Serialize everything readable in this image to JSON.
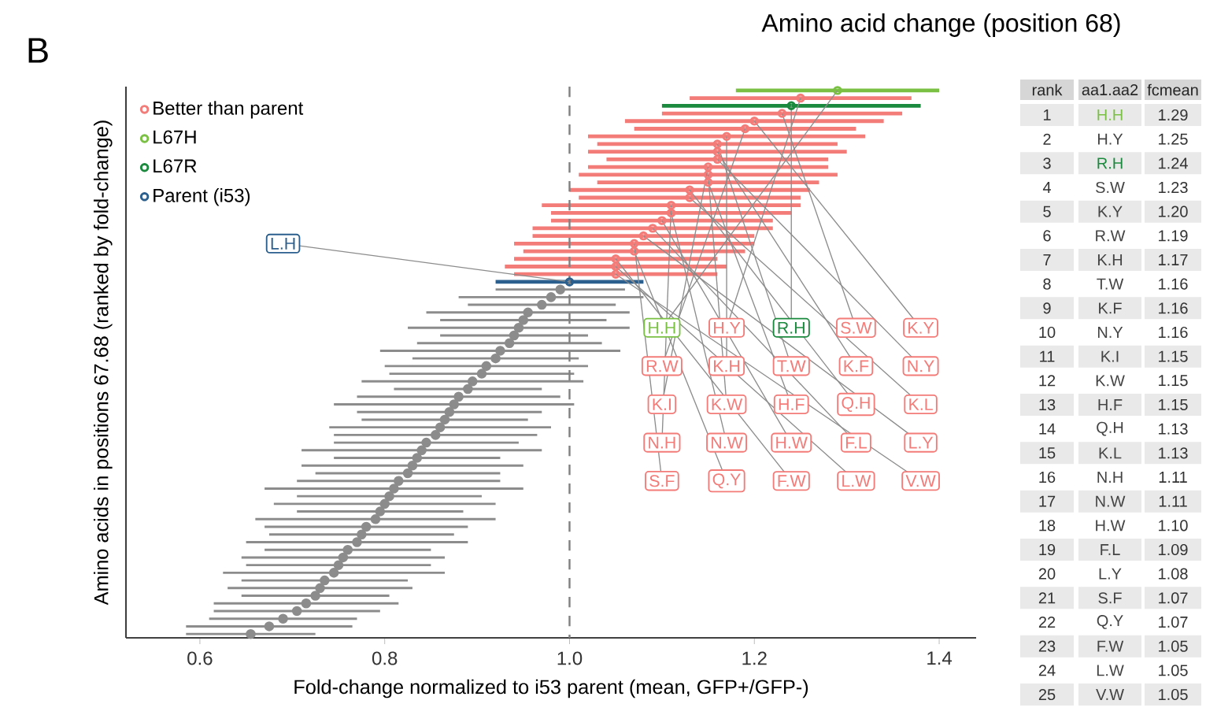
{
  "chart_data": [
    {
      "type": "scatter",
      "orientation": "horizontal",
      "title": "Amino acid change (position 68)",
      "annotations": [
        "B"
      ],
      "xlabel": "Fold-change normalized to i53 parent (mean, GFP+/GFP-)",
      "ylabel": "Amino acids in positions 67.68 (ranked by fold-change)",
      "categories": [
        null,
        null,
        null,
        null,
        null,
        null,
        null,
        null,
        null,
        null,
        null,
        null,
        null,
        null,
        null,
        null,
        null,
        null,
        null,
        null,
        null,
        null,
        null,
        null,
        null,
        null,
        null,
        null,
        null,
        null,
        null,
        null,
        null,
        null,
        null,
        null,
        null,
        null,
        null,
        null,
        null,
        null,
        null,
        null,
        null,
        null,
        null,
        null,
        null,
        null,
        null,
        null,
        null,
        null,
        null,
        null,
        null,
        null,
        null,
        null,
        null,
        null,
        null,
        null,
        null,
        null,
        null,
        null,
        null,
        null,
        null,
        null
      ],
      "xlim": [
        0.52,
        1.44
      ],
      "xticks": [
        0.6,
        0.8,
        {
          "value": 1.0,
          "label": "1.0"
        },
        1.2,
        1.4
      ],
      "tick_labels": "x",
      "marker": "circle",
      "legend": "top left",
      "ref_lines": [
        {
          "axis": "x",
          "value": 1.0,
          "color": "#808080",
          "line_style": "dashed"
        }
      ],
      "series": [
        {
          "name": "Better than parent",
          "color": "#f37b78",
          "values": [
            null,
            1.25,
            null,
            1.23,
            1.2,
            1.19,
            1.17,
            1.16,
            1.16,
            1.16,
            1.15,
            1.15,
            1.15,
            1.13,
            1.13,
            1.11,
            1.11,
            1.1,
            1.09,
            1.08,
            1.07,
            1.07,
            1.05,
            1.05,
            1.05,
            null,
            null,
            null,
            null,
            null,
            null,
            null,
            null,
            null,
            null,
            null,
            null,
            null,
            null,
            null,
            null,
            null,
            null,
            null,
            null,
            null,
            null,
            null,
            null,
            null,
            null,
            null,
            null,
            null,
            null,
            null,
            null,
            null,
            null,
            null,
            null,
            null,
            null,
            null,
            null,
            null,
            null,
            null,
            null,
            null,
            null,
            null
          ],
          "errors": [
            null,
            0.12,
            null,
            0.13,
            0.14,
            0.12,
            0.15,
            0.13,
            0.14,
            0.12,
            0.13,
            0.14,
            0.12,
            0.13,
            0.12,
            0.14,
            0.13,
            0.12,
            0.13,
            0.12,
            0.13,
            0.12,
            0.11,
            0.12,
            0.11,
            null,
            null,
            null,
            null,
            null,
            null,
            null,
            null,
            null,
            null,
            null,
            null,
            null,
            null,
            null,
            null,
            null,
            null,
            null,
            null,
            null,
            null,
            null,
            null,
            null,
            null,
            null,
            null,
            null,
            null,
            null,
            null,
            null,
            null,
            null,
            null,
            null,
            null,
            null,
            null,
            null,
            null,
            null,
            null,
            null,
            null,
            null
          ],
          "value_labels": [
            null,
            "H.Y",
            null,
            "S.W",
            "K.Y",
            "R.W",
            "K.H",
            "T.W",
            "K.F",
            "N.Y",
            "K.I",
            "K.W",
            "H.F",
            "Q.H",
            "K.L",
            "N.H",
            "N.W",
            "H.W",
            "F.L",
            "L.Y",
            "S.F",
            "Q.Y",
            "F.W",
            "L.W",
            "V.W",
            null,
            null,
            null,
            null,
            null,
            null,
            null,
            null,
            null,
            null,
            null,
            null,
            null,
            null,
            null,
            null,
            null,
            null,
            null,
            null,
            null,
            null,
            null,
            null,
            null,
            null,
            null,
            null,
            null,
            null,
            null,
            null,
            null,
            null,
            null,
            null,
            null,
            null,
            null,
            null,
            null,
            null,
            null,
            null,
            null,
            null,
            null
          ]
        },
        {
          "name": "L67H",
          "color": "#7ac143",
          "values": [
            1.29,
            null,
            null,
            null,
            null,
            null,
            null,
            null,
            null,
            null,
            null,
            null,
            null,
            null,
            null,
            null,
            null,
            null,
            null,
            null,
            null,
            null,
            null,
            null,
            null,
            null,
            null,
            null,
            null,
            null,
            null,
            null,
            null,
            null,
            null,
            null,
            null,
            null,
            null,
            null,
            null,
            null,
            null,
            null,
            null,
            null,
            null,
            null,
            null,
            null,
            null,
            null,
            null,
            null,
            null,
            null,
            null,
            null,
            null,
            null,
            null,
            null,
            null,
            null,
            null,
            null,
            null,
            null,
            null,
            null,
            null,
            null
          ],
          "errors": [
            0.11,
            null,
            null,
            null,
            null,
            null,
            null,
            null,
            null,
            null,
            null,
            null,
            null,
            null,
            null,
            null,
            null,
            null,
            null,
            null,
            null,
            null,
            null,
            null,
            null,
            null,
            null,
            null,
            null,
            null,
            null,
            null,
            null,
            null,
            null,
            null,
            null,
            null,
            null,
            null,
            null,
            null,
            null,
            null,
            null,
            null,
            null,
            null,
            null,
            null,
            null,
            null,
            null,
            null,
            null,
            null,
            null,
            null,
            null,
            null,
            null,
            null,
            null,
            null,
            null,
            null,
            null,
            null,
            null,
            null,
            null,
            null
          ],
          "value_labels": [
            "H.H",
            null,
            null,
            null,
            null,
            null,
            null,
            null,
            null,
            null,
            null,
            null,
            null,
            null,
            null,
            null,
            null,
            null,
            null,
            null,
            null,
            null,
            null,
            null,
            null,
            null,
            null,
            null,
            null,
            null,
            null,
            null,
            null,
            null,
            null,
            null,
            null,
            null,
            null,
            null,
            null,
            null,
            null,
            null,
            null,
            null,
            null,
            null,
            null,
            null,
            null,
            null,
            null,
            null,
            null,
            null,
            null,
            null,
            null,
            null,
            null,
            null,
            null,
            null,
            null,
            null,
            null,
            null,
            null,
            null,
            null,
            null
          ]
        },
        {
          "name": "L67R",
          "color": "#1b8a3e",
          "values": [
            null,
            null,
            1.24,
            null,
            null,
            null,
            null,
            null,
            null,
            null,
            null,
            null,
            null,
            null,
            null,
            null,
            null,
            null,
            null,
            null,
            null,
            null,
            null,
            null,
            null,
            null,
            null,
            null,
            null,
            null,
            null,
            null,
            null,
            null,
            null,
            null,
            null,
            null,
            null,
            null,
            null,
            null,
            null,
            null,
            null,
            null,
            null,
            null,
            null,
            null,
            null,
            null,
            null,
            null,
            null,
            null,
            null,
            null,
            null,
            null,
            null,
            null,
            null,
            null,
            null,
            null,
            null,
            null,
            null,
            null,
            null,
            null
          ],
          "errors": [
            null,
            null,
            0.14,
            null,
            null,
            null,
            null,
            null,
            null,
            null,
            null,
            null,
            null,
            null,
            null,
            null,
            null,
            null,
            null,
            null,
            null,
            null,
            null,
            null,
            null,
            null,
            null,
            null,
            null,
            null,
            null,
            null,
            null,
            null,
            null,
            null,
            null,
            null,
            null,
            null,
            null,
            null,
            null,
            null,
            null,
            null,
            null,
            null,
            null,
            null,
            null,
            null,
            null,
            null,
            null,
            null,
            null,
            null,
            null,
            null,
            null,
            null,
            null,
            null,
            null,
            null,
            null,
            null,
            null,
            null,
            null,
            null
          ],
          "value_labels": [
            null,
            null,
            "R.H",
            null,
            null,
            null,
            null,
            null,
            null,
            null,
            null,
            null,
            null,
            null,
            null,
            null,
            null,
            null,
            null,
            null,
            null,
            null,
            null,
            null,
            null,
            null,
            null,
            null,
            null,
            null,
            null,
            null,
            null,
            null,
            null,
            null,
            null,
            null,
            null,
            null,
            null,
            null,
            null,
            null,
            null,
            null,
            null,
            null,
            null,
            null,
            null,
            null,
            null,
            null,
            null,
            null,
            null,
            null,
            null,
            null,
            null,
            null,
            null,
            null,
            null,
            null,
            null,
            null,
            null,
            null,
            null,
            null
          ]
        },
        {
          "name": "Parent (i53)",
          "color": "#2b5f8e",
          "values": [
            null,
            null,
            null,
            null,
            null,
            null,
            null,
            null,
            null,
            null,
            null,
            null,
            null,
            null,
            null,
            null,
            null,
            null,
            null,
            null,
            null,
            null,
            null,
            null,
            null,
            1.0,
            null,
            null,
            null,
            null,
            null,
            null,
            null,
            null,
            null,
            null,
            null,
            null,
            null,
            null,
            null,
            null,
            null,
            null,
            null,
            null,
            null,
            null,
            null,
            null,
            null,
            null,
            null,
            null,
            null,
            null,
            null,
            null,
            null,
            null,
            null,
            null,
            null,
            null,
            null,
            null,
            null,
            null,
            null,
            null,
            null,
            null
          ],
          "errors": [
            null,
            null,
            null,
            null,
            null,
            null,
            null,
            null,
            null,
            null,
            null,
            null,
            null,
            null,
            null,
            null,
            null,
            null,
            null,
            null,
            null,
            null,
            null,
            null,
            null,
            0.08,
            null,
            null,
            null,
            null,
            null,
            null,
            null,
            null,
            null,
            null,
            null,
            null,
            null,
            null,
            null,
            null,
            null,
            null,
            null,
            null,
            null,
            null,
            null,
            null,
            null,
            null,
            null,
            null,
            null,
            null,
            null,
            null,
            null,
            null,
            null,
            null,
            null,
            null,
            null,
            null,
            null,
            null,
            null,
            null,
            null,
            null
          ],
          "value_labels": [
            null,
            null,
            null,
            null,
            null,
            null,
            null,
            null,
            null,
            null,
            null,
            null,
            null,
            null,
            null,
            null,
            null,
            null,
            null,
            null,
            null,
            null,
            null,
            null,
            null,
            "L.H",
            null,
            null,
            null,
            null,
            null,
            null,
            null,
            null,
            null,
            null,
            null,
            null,
            null,
            null,
            null,
            null,
            null,
            null,
            null,
            null,
            null,
            null,
            null,
            null,
            null,
            null,
            null,
            null,
            null,
            null,
            null,
            null,
            null,
            null,
            null,
            null,
            null,
            null,
            null,
            null,
            null,
            null,
            null,
            null,
            null,
            null
          ]
        },
        {
          "color": "#8c8c8c",
          "values": [
            null,
            null,
            null,
            null,
            null,
            null,
            null,
            null,
            null,
            null,
            null,
            null,
            null,
            null,
            null,
            null,
            null,
            null,
            null,
            null,
            null,
            null,
            null,
            null,
            null,
            null,
            0.99,
            0.98,
            0.97,
            0.955,
            0.95,
            0.945,
            0.94,
            0.935,
            0.925,
            0.92,
            0.91,
            0.905,
            0.895,
            0.89,
            0.88,
            0.875,
            0.87,
            0.865,
            0.86,
            0.855,
            0.845,
            0.84,
            0.835,
            0.83,
            0.825,
            0.815,
            0.81,
            0.805,
            0.8,
            0.795,
            0.79,
            0.78,
            0.775,
            0.77,
            0.76,
            0.755,
            0.75,
            0.745,
            0.735,
            0.73,
            0.725,
            0.715,
            0.705,
            0.69,
            0.675,
            0.655
          ],
          "errors": [
            null,
            null,
            null,
            null,
            null,
            null,
            null,
            null,
            null,
            null,
            null,
            null,
            null,
            null,
            null,
            null,
            null,
            null,
            null,
            null,
            null,
            null,
            null,
            null,
            null,
            null,
            0.07,
            0.1,
            0.08,
            0.11,
            0.09,
            0.12,
            0.08,
            0.1,
            0.13,
            0.09,
            0.11,
            0.1,
            0.12,
            0.08,
            0.11,
            0.13,
            0.1,
            0.09,
            0.12,
            0.11,
            0.1,
            0.13,
            0.09,
            0.12,
            0.1,
            0.11,
            0.14,
            0.1,
            0.12,
            0.09,
            0.13,
            0.11,
            0.1,
            0.12,
            0.09,
            0.11,
            0.1,
            0.12,
            0.09,
            0.1,
            0.08,
            0.1,
            0.09,
            0.08,
            0.09,
            0.07
          ]
        }
      ]
    },
    {
      "type": "heatmap",
      "ylabel": "rank",
      "categories": [
        "aa1.aa2",
        "fcmean"
      ],
      "y_categories": [
        "1",
        "2",
        "3",
        "4",
        "5",
        "6",
        "7",
        "8",
        "9",
        "10",
        "11",
        "12",
        "13",
        "14",
        "15",
        "16",
        "17",
        "18",
        "19",
        "20",
        "21",
        "22",
        "23",
        "24",
        "25"
      ],
      "cells": [
        [
          null,
          null
        ],
        [
          null,
          null
        ],
        [
          null,
          null
        ],
        [
          null,
          null
        ],
        [
          null,
          null
        ],
        [
          null,
          null
        ],
        [
          null,
          null
        ],
        [
          null,
          null
        ],
        [
          null,
          null
        ],
        [
          null,
          null
        ],
        [
          null,
          null
        ],
        [
          null,
          null
        ],
        [
          null,
          null
        ],
        [
          null,
          null
        ],
        [
          null,
          null
        ],
        [
          null,
          null
        ],
        [
          null,
          null
        ],
        [
          null,
          null
        ],
        [
          null,
          null
        ],
        [
          null,
          null
        ],
        [
          null,
          null
        ],
        [
          null,
          null
        ],
        [
          null,
          null
        ],
        [
          null,
          null
        ],
        [
          null,
          null
        ]
      ],
      "cell_labels": [
        [
          "H.H",
          "1.29"
        ],
        [
          "H.Y",
          "1.25"
        ],
        [
          "R.H",
          "1.24"
        ],
        [
          "S.W",
          "1.23"
        ],
        [
          "K.Y",
          "1.20"
        ],
        [
          "R.W",
          "1.19"
        ],
        [
          "K.H",
          "1.17"
        ],
        [
          "T.W",
          "1.16"
        ],
        [
          "K.F",
          "1.16"
        ],
        [
          "N.Y",
          "1.16"
        ],
        [
          "K.I",
          "1.15"
        ],
        [
          "K.W",
          "1.15"
        ],
        [
          "H.F",
          "1.15"
        ],
        [
          "Q.H",
          "1.13"
        ],
        [
          "K.L",
          "1.13"
        ],
        [
          "N.H",
          "1.11"
        ],
        [
          "N.W",
          "1.11"
        ],
        [
          "H.W",
          "1.10"
        ],
        [
          "F.L",
          "1.09"
        ],
        [
          "L.Y",
          "1.08"
        ],
        [
          "S.F",
          "1.07"
        ],
        [
          "Q.Y",
          "1.07"
        ],
        [
          "F.W",
          "1.05"
        ],
        [
          "L.W",
          "1.05"
        ],
        [
          "V.W",
          "1.05"
        ]
      ],
      "colors": [
        "#7ac143",
        "#444444",
        "#1b8a3e",
        "#444444",
        "#444444",
        "#444444",
        "#444444",
        "#444444",
        "#444444",
        "#444444",
        "#444444",
        "#444444",
        "#444444",
        "#444444",
        "#444444",
        "#444444",
        "#444444",
        "#444444",
        "#444444",
        "#444444",
        "#444444",
        "#444444",
        "#444444",
        "#444444",
        "#444444"
      ]
    }
  ]
}
